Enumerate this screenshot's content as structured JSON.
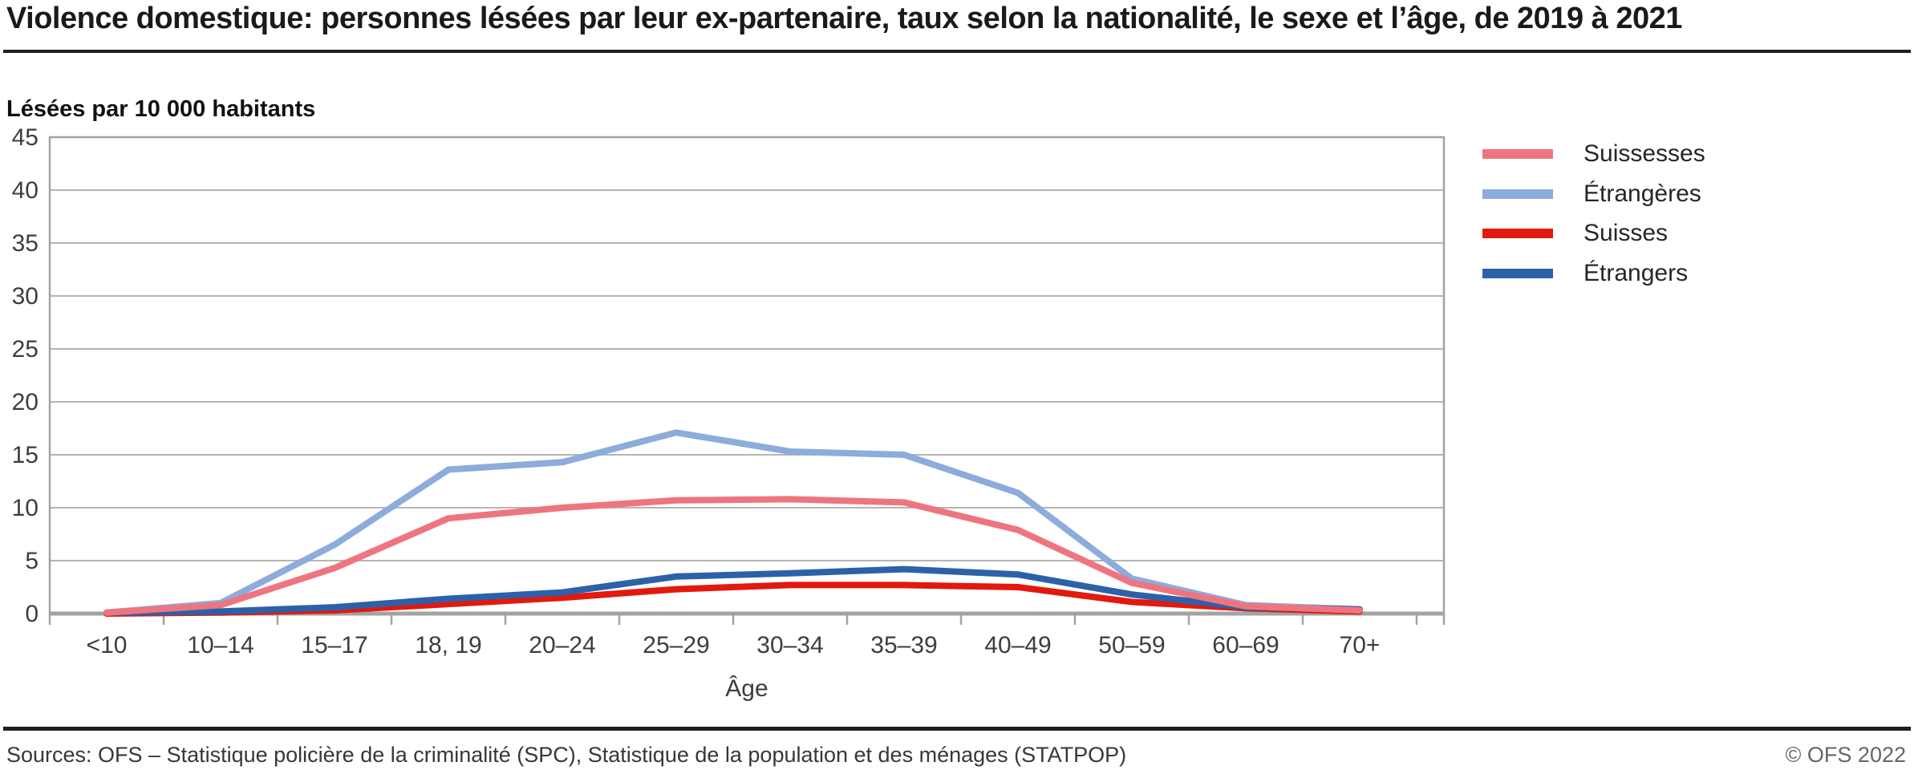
{
  "header": {
    "title": "Violence domestique: personnes lésées par leur ex-partenaire, taux selon la nationalité, le sexe et l’âge, de 2019 à 2021"
  },
  "chart_data": {
    "type": "line",
    "title": "Violence domestique: personnes lésées par leur ex-partenaire, taux selon la nationalité, le sexe et l’âge, de 2019 à 2021",
    "ylabel": "Lésées par 10 000 habitants",
    "xlabel": "Âge",
    "ylim": [
      0,
      45
    ],
    "ytick_step": 5,
    "grid": true,
    "legend_position": "right",
    "categories": [
      "<10",
      "10–14",
      "15–17",
      "18, 19",
      "20–24",
      "25–29",
      "30–34",
      "35–39",
      "40–49",
      "50–59",
      "60–69",
      "70+"
    ],
    "series": [
      {
        "name": "Suissesses",
        "color": "#ee7580",
        "values": [
          0.1,
          0.8,
          4.3,
          9.0,
          10.0,
          10.7,
          10.8,
          10.5,
          7.9,
          2.9,
          0.7,
          0.3
        ]
      },
      {
        "name": "Étrangères",
        "color": "#8cacdc",
        "values": [
          0.1,
          1.0,
          6.5,
          13.6,
          14.3,
          17.1,
          15.3,
          15.0,
          11.4,
          3.3,
          0.8,
          0.4
        ]
      },
      {
        "name": "Suisses",
        "color": "#e2190e",
        "values": [
          0.0,
          0.1,
          0.3,
          0.9,
          1.5,
          2.3,
          2.7,
          2.7,
          2.5,
          1.1,
          0.5,
          0.2
        ]
      },
      {
        "name": "Étrangers",
        "color": "#2c61aa",
        "values": [
          0.1,
          0.2,
          0.6,
          1.4,
          2.0,
          3.5,
          3.8,
          4.2,
          3.7,
          1.8,
          0.6,
          0.4
        ]
      }
    ],
    "axis_colors": {
      "grid": "#b5b5b5",
      "frame": "#a3a3a3",
      "tick_text": "#3d3d3d"
    }
  },
  "footer": {
    "sources": "Sources: OFS – Statistique policière de la criminalité (SPC), Statistique de la population et des ménages (STATPOP)",
    "copyright": "© OFS 2022"
  }
}
